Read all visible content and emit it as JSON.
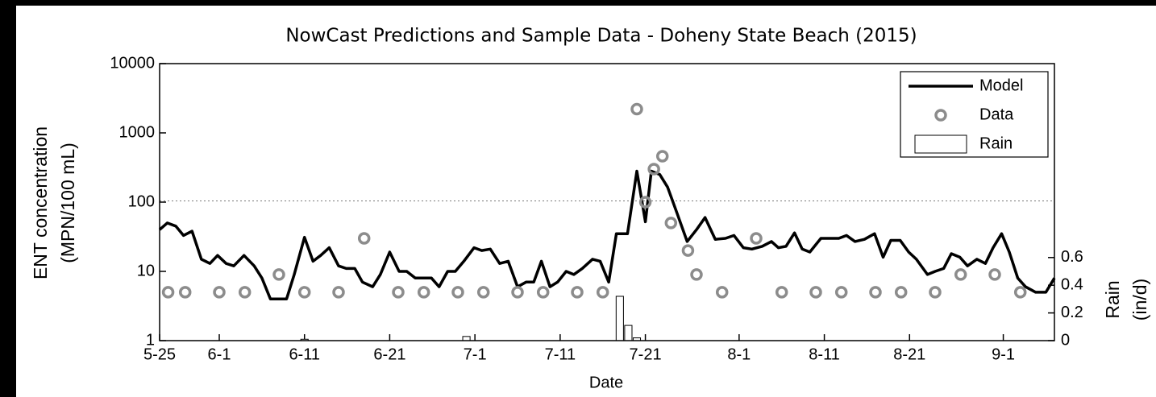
{
  "chart_data": {
    "type": "line",
    "title": "NowCast Predictions and Sample Data - Doheny State Beach (2015)",
    "xlabel": "Date",
    "ylabel": [
      "ENT concentration",
      "(MPN/100 mL)"
    ],
    "y2label": [
      "Rain",
      "(in/d)"
    ],
    "xlim": [
      0,
      105
    ],
    "xticks": [
      {
        "value": 0,
        "label": "5-25"
      },
      {
        "value": 7,
        "label": "6-1"
      },
      {
        "value": 17,
        "label": "6-11"
      },
      {
        "value": 27,
        "label": "6-21"
      },
      {
        "value": 37,
        "label": "7-1"
      },
      {
        "value": 47,
        "label": "7-11"
      },
      {
        "value": 57,
        "label": "7-21"
      },
      {
        "value": 68,
        "label": "8-1"
      },
      {
        "value": 78,
        "label": "8-11"
      },
      {
        "value": 88,
        "label": "8-21"
      },
      {
        "value": 99,
        "label": "9-1"
      }
    ],
    "ylim": [
      1,
      10000
    ],
    "yticks": [
      1,
      10,
      100,
      1000,
      10000
    ],
    "log_y": true,
    "y2lim": [
      0,
      2
    ],
    "y2ticks": [
      0,
      0.2,
      0.4,
      0.6
    ],
    "threshold": 104,
    "legend": "upper right",
    "series": [
      {
        "name": "Model",
        "type": "line",
        "color": "#000000",
        "x": [
          0,
          0.9,
          1.9,
          2.8,
          3.8,
          4.9,
          5.9,
          6.8,
          7.8,
          8.7,
          9.9,
          11.1,
          12,
          13,
          14.9,
          15.8,
          17,
          18,
          18.9,
          19.9,
          21,
          21.9,
          22.9,
          23.8,
          25,
          25.9,
          27,
          28.1,
          29,
          30,
          30.9,
          31.9,
          32.8,
          33.8,
          34.7,
          35.7,
          36.9,
          37.8,
          38.8,
          39.9,
          40.9,
          42,
          43,
          43.9,
          44.8,
          45.8,
          46.7,
          47.7,
          48.6,
          49.6,
          50.8,
          51.7,
          52.7,
          53.6,
          54.9,
          56,
          57,
          57.7,
          58.7,
          59.6,
          60.7,
          61.9,
          63,
          64,
          65.2,
          66.4,
          67.4,
          68.5,
          69.5,
          70.7,
          71.8,
          72.6,
          73.5,
          74.5,
          75.4,
          76.3,
          77.6,
          78.5,
          79.7,
          80.6,
          81.6,
          82.7,
          83.9,
          84.9,
          85.8,
          86.9,
          87.9,
          88.8,
          90.1,
          91,
          92,
          92.9,
          93.9,
          94.8,
          95.9,
          96.9,
          97.8,
          98.8,
          99.7,
          100.7,
          101.6,
          102.8,
          104,
          105
        ],
        "values": [
          40,
          50,
          45,
          33,
          38,
          15,
          13,
          17,
          13,
          12,
          17,
          12,
          8,
          4,
          4,
          9,
          31,
          14,
          17,
          22,
          12,
          11,
          11,
          7,
          6,
          9,
          19,
          10,
          10,
          8,
          8,
          8,
          6,
          10,
          10,
          14,
          22,
          20,
          21,
          13,
          14,
          6,
          7,
          7,
          14,
          6,
          7,
          10,
          9,
          11,
          15,
          14,
          7,
          35,
          35,
          280,
          52,
          280,
          250,
          165,
          70,
          27,
          40,
          60,
          29,
          30,
          33,
          22,
          21,
          23,
          27,
          22,
          23,
          36,
          21,
          19,
          30,
          30,
          30,
          33,
          27,
          29,
          35,
          16,
          28,
          28,
          19,
          15,
          9,
          10,
          11,
          18,
          16,
          12,
          15,
          13,
          22,
          35,
          19,
          8,
          6,
          5,
          5,
          8
        ]
      },
      {
        "name": "Data",
        "type": "scatter",
        "color": "#8c8c8c",
        "x": [
          1,
          3,
          7,
          10,
          14,
          17,
          21,
          24,
          28,
          31,
          35,
          38,
          42,
          45,
          49,
          52,
          56,
          57,
          58,
          59,
          60,
          62,
          63,
          66,
          70,
          73,
          77,
          80,
          84,
          87,
          91,
          94,
          98,
          101
        ],
        "values": [
          5,
          5,
          5,
          5,
          9,
          5,
          5,
          30,
          5,
          5,
          5,
          5,
          5,
          5,
          5,
          5,
          2200,
          100,
          300,
          460,
          50,
          20,
          9,
          5,
          30,
          5,
          5,
          5,
          5,
          5,
          5,
          9,
          9,
          5
        ]
      },
      {
        "name": "Rain",
        "type": "bar",
        "axis": "y2",
        "color": "#ffffff",
        "x": [
          17,
          36,
          54,
          55,
          56
        ],
        "values": [
          0.01,
          0.03,
          0.32,
          0.11,
          0.02
        ]
      }
    ]
  }
}
